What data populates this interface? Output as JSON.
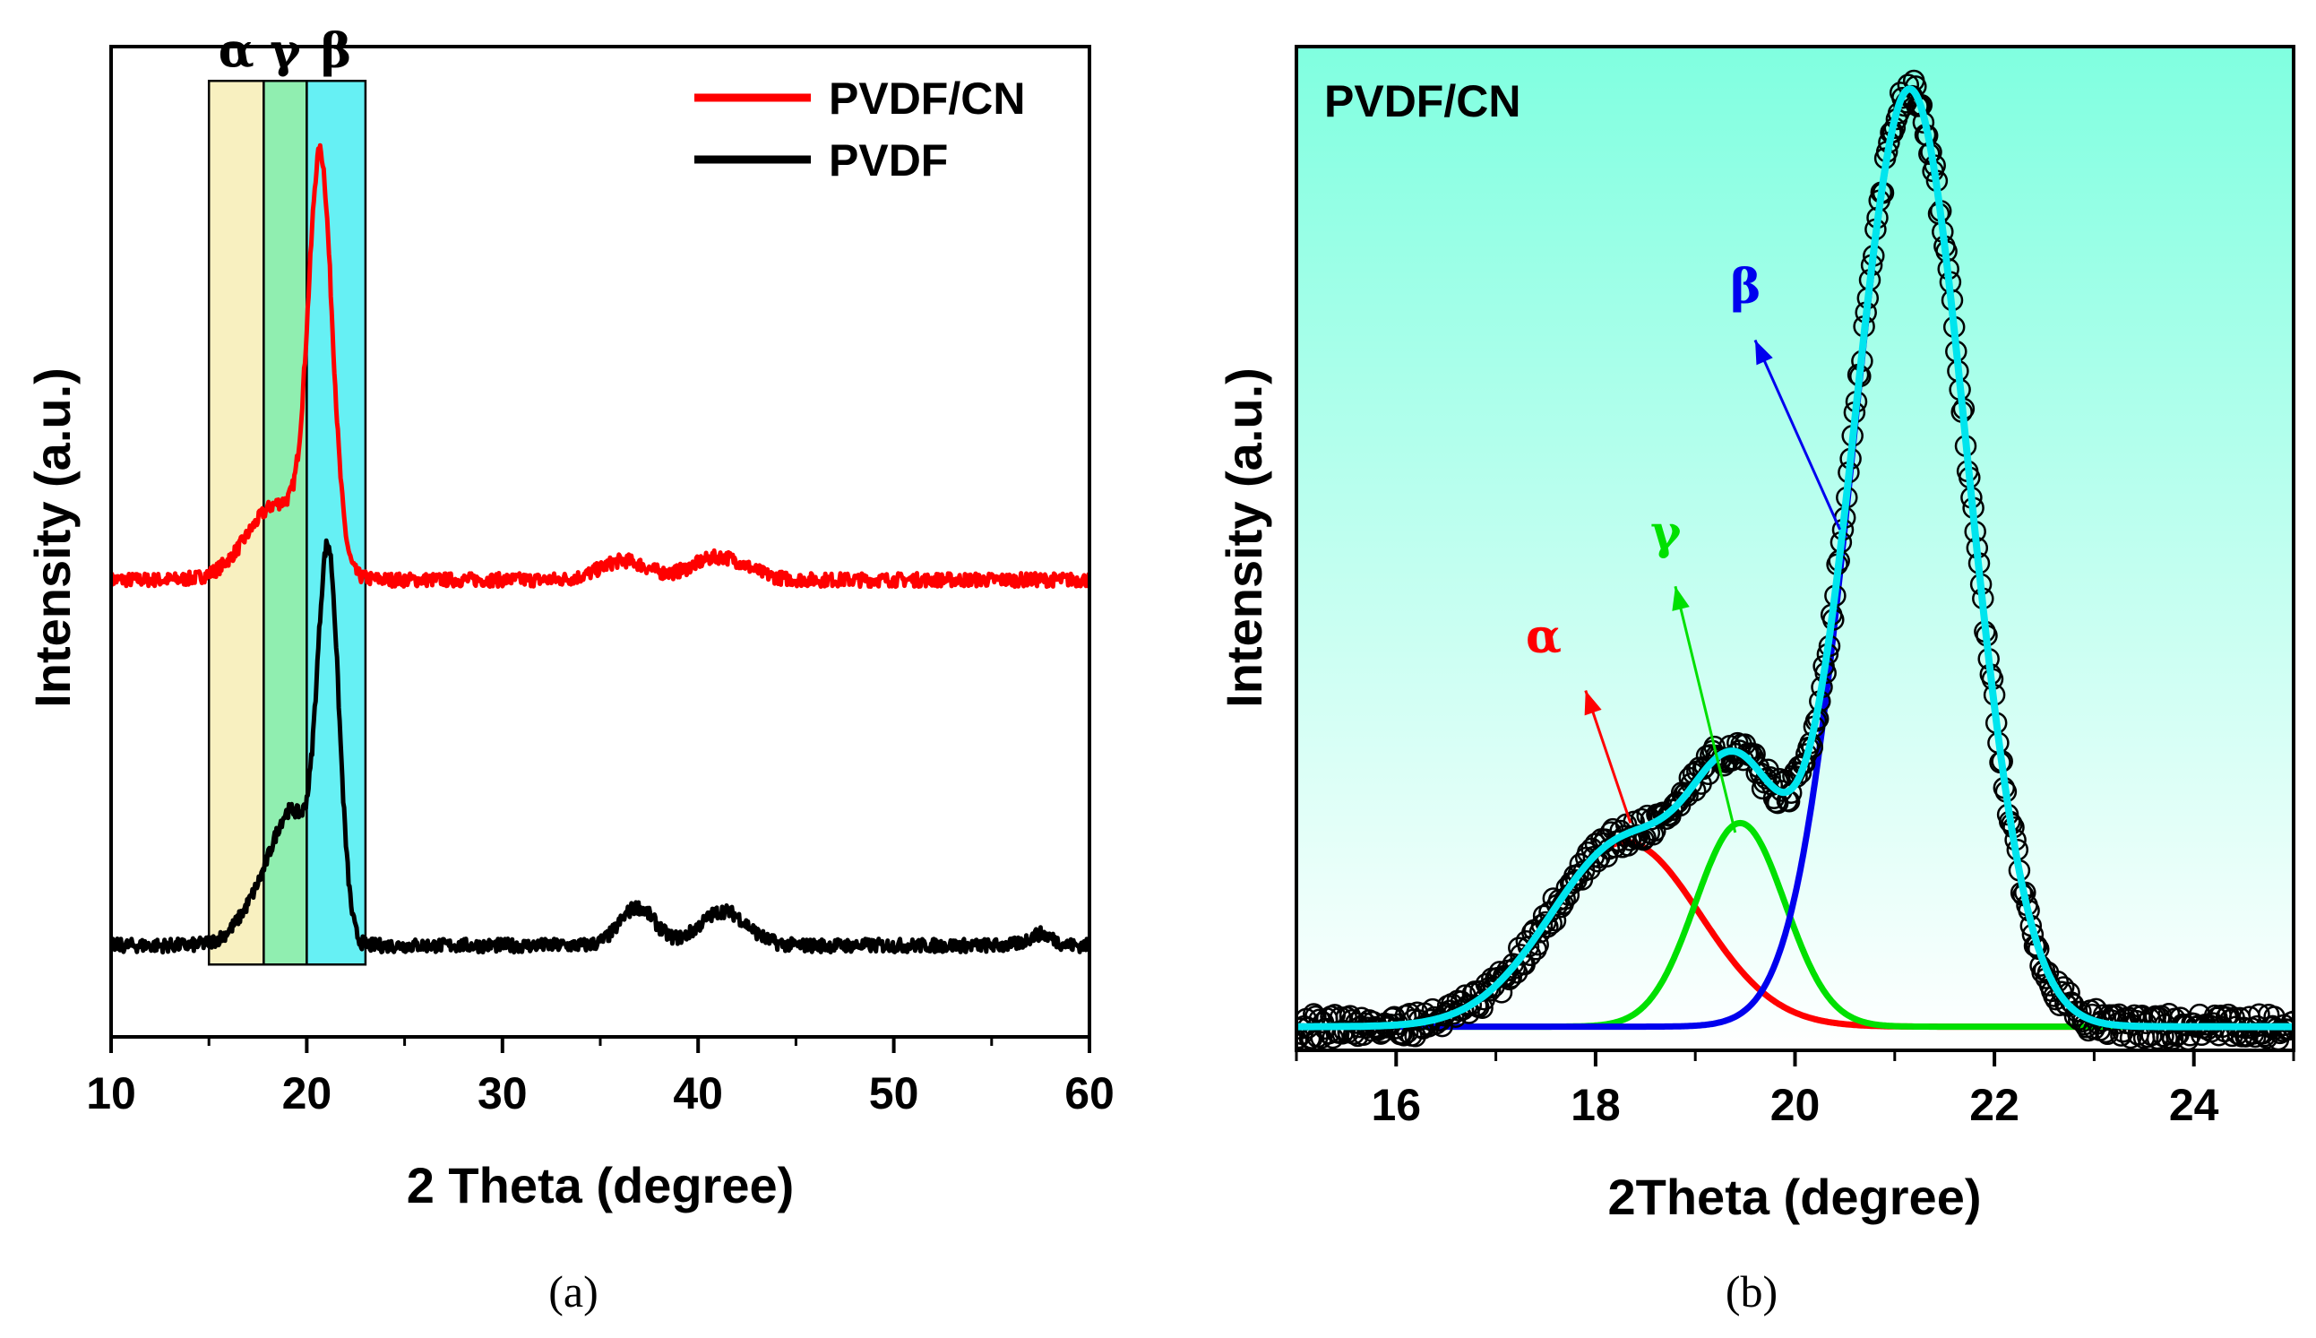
{
  "chart_data": [
    {
      "id": "a",
      "type": "line",
      "caption": "(a)",
      "xlabel": "2 Theta (degree)",
      "ylabel": "Intensity (a.u.)",
      "xlim": [
        10,
        60
      ],
      "xticks": [
        10,
        20,
        30,
        40,
        50,
        60
      ],
      "xtick_labels": [
        "10",
        "20",
        "30",
        "40",
        "50",
        "60"
      ],
      "ylim": [
        0,
        1.3
      ],
      "legend_position": "top-right",
      "grid": false,
      "series": [
        {
          "name": "PVDF/CN",
          "color": "#ff0000",
          "offset": 0.6,
          "peaks": [
            {
              "center": 20.7,
              "height": 0.52,
              "width": 0.6
            },
            {
              "center": 18.6,
              "height": 0.1,
              "width": 1.6
            },
            {
              "center": 36.2,
              "height": 0.025,
              "width": 1.2
            },
            {
              "center": 41.1,
              "height": 0.03,
              "width": 1.4
            }
          ]
        },
        {
          "name": "PVDF",
          "color": "#000000",
          "offset": 0.12,
          "peaks": [
            {
              "center": 21.1,
              "height": 0.5,
              "width": 0.55
            },
            {
              "center": 19.4,
              "height": 0.12,
              "width": 0.9
            },
            {
              "center": 18.2,
              "height": 0.08,
              "width": 1.3
            },
            {
              "center": 36.9,
              "height": 0.05,
              "width": 0.9
            },
            {
              "center": 41.3,
              "height": 0.045,
              "width": 1.2
            },
            {
              "center": 57.5,
              "height": 0.015,
              "width": 0.6
            }
          ]
        }
      ],
      "phase_bands": [
        {
          "label": "α",
          "x_start": 15,
          "x_end": 17.8,
          "color": "#f8f0c0"
        },
        {
          "label": "γ",
          "x_start": 17.8,
          "x_end": 20.0,
          "color": "#90eeb0"
        },
        {
          "label": "β",
          "x_start": 20.0,
          "x_end": 23.0,
          "color": "#66f0f4"
        }
      ]
    },
    {
      "id": "b",
      "type": "line",
      "caption": "(b)",
      "title": "PVDF/CN",
      "xlabel": "2Theta (degree)",
      "ylabel": "Intensity (a.u.)",
      "xlim": [
        15,
        25
      ],
      "xticks": [
        16,
        18,
        20,
        22,
        24
      ],
      "xtick_labels": [
        "16",
        "18",
        "20",
        "22",
        "24"
      ],
      "ylim": [
        0,
        1.06
      ],
      "background_gradient": [
        "#80ffe0",
        "#ffffff"
      ],
      "grid": false,
      "components": [
        {
          "name": "α",
          "color": "#ff0000",
          "center": 18.3,
          "height": 0.195,
          "width": 0.75
        },
        {
          "name": "γ",
          "color": "#00e000",
          "center": 19.45,
          "height": 0.215,
          "width": 0.45
        },
        {
          "name": "β",
          "color": "#0000ee",
          "center": 21.15,
          "height": 0.99,
          "width": 0.58
        }
      ],
      "baseline": 0.025,
      "fit": {
        "name": "fit",
        "color": "#00e5ee"
      },
      "observed": {
        "name": "data",
        "marker": "open-circle",
        "color": "#000000"
      },
      "annotations": [
        {
          "label": "α",
          "color": "#ff0000",
          "from": [
            18.35,
            0.24
          ],
          "to": [
            17.9,
            0.38
          ],
          "label_at": [
            17.3,
            0.42
          ]
        },
        {
          "label": "γ",
          "color": "#00e000",
          "from": [
            19.4,
            0.23
          ],
          "to": [
            18.8,
            0.49
          ],
          "label_at": [
            18.55,
            0.53
          ]
        },
        {
          "label": "β",
          "color": "#0000ee",
          "from": [
            20.45,
            0.55
          ],
          "to": [
            19.6,
            0.75
          ],
          "label_at": [
            19.35,
            0.79
          ]
        }
      ]
    }
  ]
}
